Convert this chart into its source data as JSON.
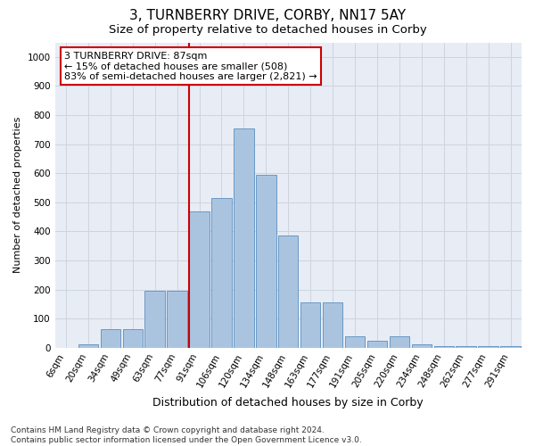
{
  "title": "3, TURNBERRY DRIVE, CORBY, NN17 5AY",
  "subtitle": "Size of property relative to detached houses in Corby",
  "xlabel": "Distribution of detached houses by size in Corby",
  "ylabel": "Number of detached properties",
  "categories": [
    "6sqm",
    "20sqm",
    "34sqm",
    "49sqm",
    "63sqm",
    "77sqm",
    "91sqm",
    "106sqm",
    "120sqm",
    "134sqm",
    "148sqm",
    "163sqm",
    "177sqm",
    "191sqm",
    "205sqm",
    "220sqm",
    "234sqm",
    "248sqm",
    "262sqm",
    "277sqm",
    "291sqm"
  ],
  "values": [
    0,
    12,
    65,
    65,
    195,
    195,
    470,
    515,
    755,
    595,
    385,
    155,
    155,
    40,
    25,
    40,
    12,
    5,
    5,
    5,
    5
  ],
  "bar_color": "#aac4e0",
  "bar_edgecolor": "#5a8fc0",
  "vline_idx": 6,
  "vline_color": "#cc0000",
  "annotation_text": "3 TURNBERRY DRIVE: 87sqm\n← 15% of detached houses are smaller (508)\n83% of semi-detached houses are larger (2,821) →",
  "annotation_box_edgecolor": "#cc0000",
  "annotation_box_facecolor": "#ffffff",
  "ylim": [
    0,
    1050
  ],
  "yticks": [
    0,
    100,
    200,
    300,
    400,
    500,
    600,
    700,
    800,
    900,
    1000
  ],
  "grid_color": "#cdd5e0",
  "bg_color": "#e8ecf5",
  "footer": "Contains HM Land Registry data © Crown copyright and database right 2024.\nContains public sector information licensed under the Open Government Licence v3.0.",
  "title_fontsize": 11,
  "subtitle_fontsize": 9.5,
  "xlabel_fontsize": 9,
  "ylabel_fontsize": 8,
  "tick_fontsize": 7.5,
  "annotation_fontsize": 8,
  "footer_fontsize": 6.5
}
